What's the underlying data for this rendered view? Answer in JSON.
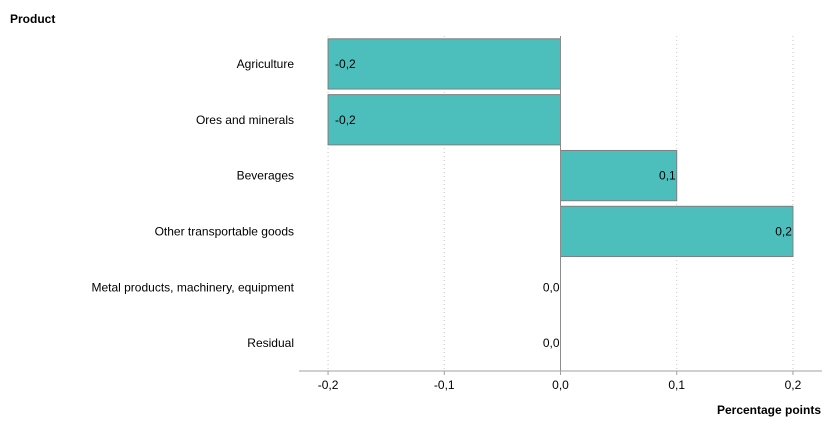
{
  "chart_data": {
    "type": "bar",
    "orientation": "horizontal",
    "ylabel": "Product",
    "xlabel": "Percentage points",
    "categories": [
      "Agriculture",
      "Ores and minerals",
      "Beverages",
      "Other transportable goods",
      "Metal products, machinery, equipment",
      "Residual"
    ],
    "values": [
      -0.2,
      -0.2,
      0.1,
      0.2,
      0.0,
      0.0
    ],
    "data_labels": [
      "-0,2",
      "-0,2",
      "0,1",
      "0,2",
      "0,0",
      "0,0"
    ],
    "xlim": [
      -0.225,
      0.225
    ],
    "xticks": [
      -0.2,
      -0.1,
      0.0,
      0.1,
      0.2
    ],
    "xtick_labels": [
      "-0,2",
      "-0,1",
      "0,0",
      "0,1",
      "0,2"
    ],
    "grid": "vertical dotted",
    "legend": "none",
    "colors": {
      "bar_fill": "#4CBFBC",
      "bar_stroke": "#7f7f7f",
      "zero_line": "#8c8c8c",
      "grid": "#c8c8c8",
      "axis": "#a0a0a0"
    }
  }
}
